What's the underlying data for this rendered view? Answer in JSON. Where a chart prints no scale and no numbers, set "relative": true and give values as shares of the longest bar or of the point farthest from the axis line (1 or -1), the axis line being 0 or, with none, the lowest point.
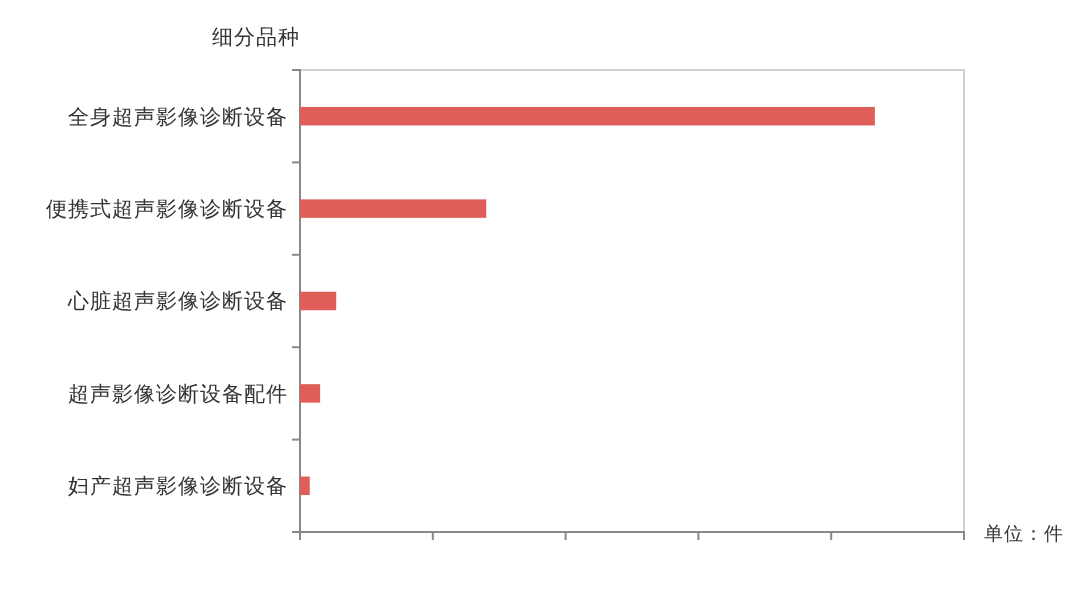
{
  "chart_data": {
    "type": "bar",
    "orientation": "horizontal",
    "relative": true,
    "ylabel": "细分品种",
    "annotations": [
      "单位：件"
    ],
    "categories": [
      "全身超声影像诊断设备",
      "便携式超声影像诊断设备",
      "心脏超声影像诊断设备",
      "超声影像诊断设备配件",
      "妇产超声影像诊断设备"
    ],
    "values": [
      1,
      0.324,
      0.063,
      0.035,
      0.017
    ],
    "color": "#e05e5a"
  }
}
